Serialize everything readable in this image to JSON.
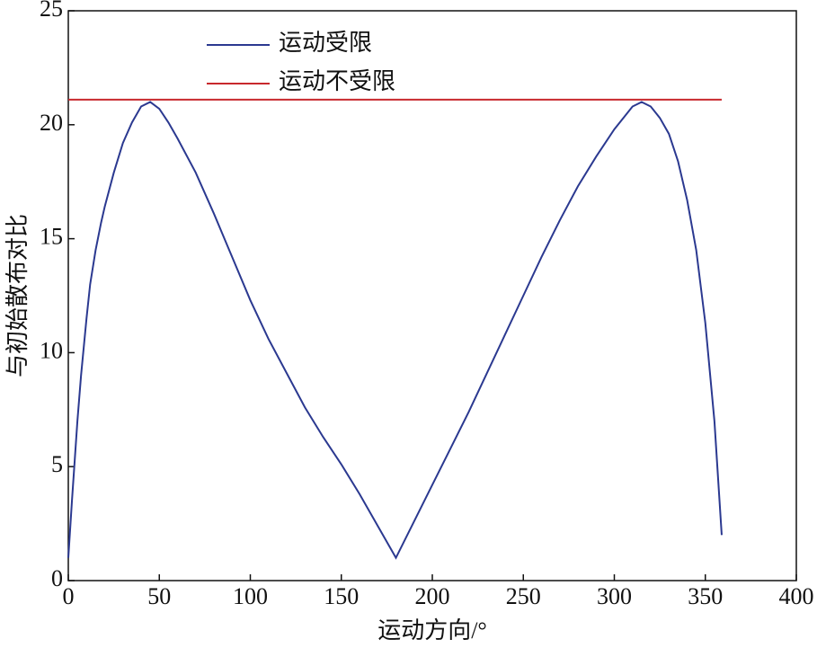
{
  "chart_data": {
    "type": "line",
    "xlabel": "运动方向/°",
    "ylabel": "与初始散布对比",
    "xlim": [
      0,
      400
    ],
    "ylim": [
      0,
      25
    ],
    "xticks": [
      0,
      50,
      100,
      150,
      200,
      250,
      300,
      350,
      400
    ],
    "yticks": [
      0,
      5,
      10,
      15,
      20,
      25
    ],
    "legend": "upper-left",
    "series": [
      {
        "name": "运动受限",
        "color": "#2b3990",
        "x": [
          0,
          2,
          5,
          7,
          10,
          12,
          15,
          18,
          20,
          25,
          30,
          35,
          40,
          45,
          50,
          55,
          60,
          70,
          80,
          90,
          100,
          110,
          120,
          130,
          140,
          150,
          160,
          170,
          180,
          190,
          200,
          210,
          220,
          230,
          240,
          250,
          260,
          270,
          280,
          290,
          300,
          310,
          315,
          320,
          325,
          330,
          335,
          340,
          345,
          350,
          355,
          359
        ],
        "values": [
          1,
          3.5,
          7,
          9,
          11.5,
          13,
          14.5,
          15.7,
          16.4,
          17.9,
          19.2,
          20.1,
          20.8,
          21,
          20.7,
          20.1,
          19.4,
          17.9,
          16.1,
          14.2,
          12.3,
          10.6,
          9.1,
          7.6,
          6.3,
          5.1,
          3.8,
          2.4,
          1,
          2.6,
          4.2,
          5.8,
          7.4,
          9.1,
          10.8,
          12.5,
          14.2,
          15.8,
          17.3,
          18.6,
          19.8,
          20.8,
          21,
          20.8,
          20.3,
          19.6,
          18.4,
          16.7,
          14.5,
          11.3,
          7,
          2
        ]
      },
      {
        "name": "运动不受限",
        "color": "#c8282d",
        "x": [
          0,
          359
        ],
        "values": [
          21.1,
          21.1
        ]
      }
    ]
  }
}
